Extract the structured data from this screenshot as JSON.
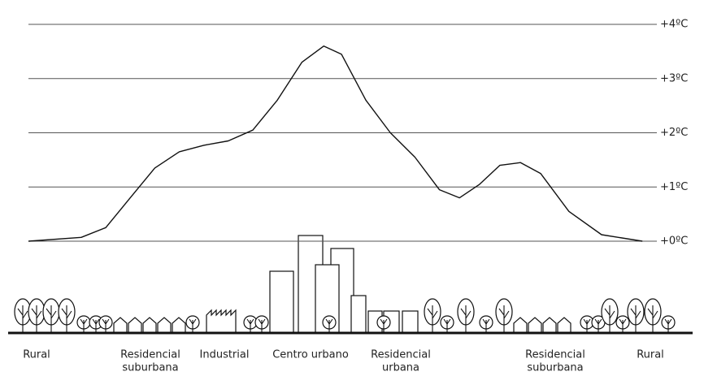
{
  "chart_data": {
    "type": "line",
    "ylim": [
      0,
      4
    ],
    "yticks": [
      {
        "value": 0,
        "label": "+0ºC"
      },
      {
        "value": 1,
        "label": "+1ºC"
      },
      {
        "value": 2,
        "label": "+2ºC"
      },
      {
        "value": 3,
        "label": "+3ºC"
      },
      {
        "value": 4,
        "label": "+4ºC"
      }
    ],
    "grid": true,
    "xlim": [
      0,
      100
    ],
    "x": [
      0,
      8.4,
      12.3,
      16.2,
      20.1,
      24,
      27.9,
      31.8,
      35.7,
      39.6,
      43.5,
      47,
      49.8,
      53.7,
      57.6,
      61.5,
      65.4,
      68.6,
      71.8,
      75,
      78.3,
      81.5,
      86,
      91.2,
      97.7
    ],
    "values": [
      0,
      0.07,
      0.25,
      0.8,
      1.35,
      1.65,
      1.77,
      1.85,
      2.05,
      2.6,
      3.3,
      3.6,
      3.45,
      2.6,
      2,
      1.55,
      0.95,
      0.8,
      1.05,
      1.4,
      1.45,
      1.25,
      0.55,
      0.12,
      0
    ],
    "color": "#111111",
    "zones": [
      {
        "lines": [
          "Rural"
        ]
      },
      {
        "lines": [
          "Residencial",
          "suburbana"
        ]
      },
      {
        "lines": [
          "Industrial"
        ]
      },
      {
        "lines": [
          "Centro urbano"
        ]
      },
      {
        "lines": [
          "Residencial",
          "urbana"
        ]
      },
      {
        "lines": [
          "Residencial",
          "suburbana"
        ]
      },
      {
        "lines": [
          "Rural"
        ]
      }
    ]
  }
}
